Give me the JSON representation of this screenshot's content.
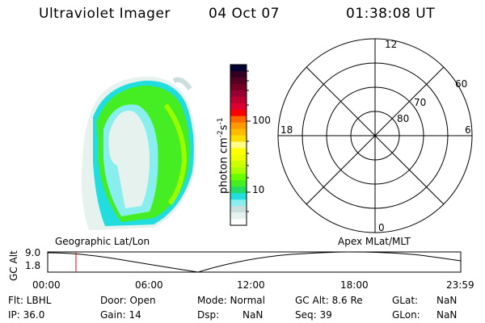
{
  "header": {
    "instrument": "Ultraviolet Imager",
    "date": "04 Oct 07",
    "time": "01:38:08 UT"
  },
  "colorbar": {
    "label": "photon cm",
    "label_sup1": "-2",
    "label_mid": "s",
    "label_sup2": "-1",
    "ticks": [
      "100",
      "10"
    ],
    "colors": [
      "#000033",
      "#330022",
      "#550022",
      "#770022",
      "#990033",
      "#bb0033",
      "#dd0033",
      "#ff0000",
      "#ff6600",
      "#ff9900",
      "#ffbb00",
      "#ffdd00",
      "#ffff88",
      "#ffff00",
      "#eeff00",
      "#ccff00",
      "#aaff00",
      "#66ff00",
      "#44ee22",
      "#22dd66",
      "#22dddd",
      "#88eeee",
      "#ccdddd",
      "#e6f2ee",
      "#ffffff"
    ]
  },
  "polar": {
    "mlt_labels": {
      "top": "12",
      "left": "18",
      "right": "6",
      "bottom": "0"
    },
    "lat_labels": [
      "60",
      "70",
      "80"
    ]
  },
  "timeline": {
    "left_title": "Geographic Lat/Lon",
    "right_title": "Apex MLat/MLT",
    "ylabel": "GC Alt",
    "yticks": [
      "9.0",
      "1.8"
    ],
    "xticks": [
      "00:00",
      "06:00",
      "12:00",
      "18:00",
      "23:59"
    ],
    "current_time_hours": 1.64,
    "marker_color": "#ff0000"
  },
  "status": {
    "flt": "Flt: LBHL",
    "ip": "IP: 36.0",
    "door": "Door: Open",
    "gain": "Gain: 14",
    "mode": "Mode: Normal",
    "dsp_label": "Dsp:",
    "dsp_value": "NaN",
    "gc_alt": "GC Alt: 8.6 Re",
    "seq": "Seq: 39",
    "glat_label": "GLat:",
    "glat_value": "NaN",
    "glon_label": "GLon:",
    "glon_value": "NaN"
  }
}
